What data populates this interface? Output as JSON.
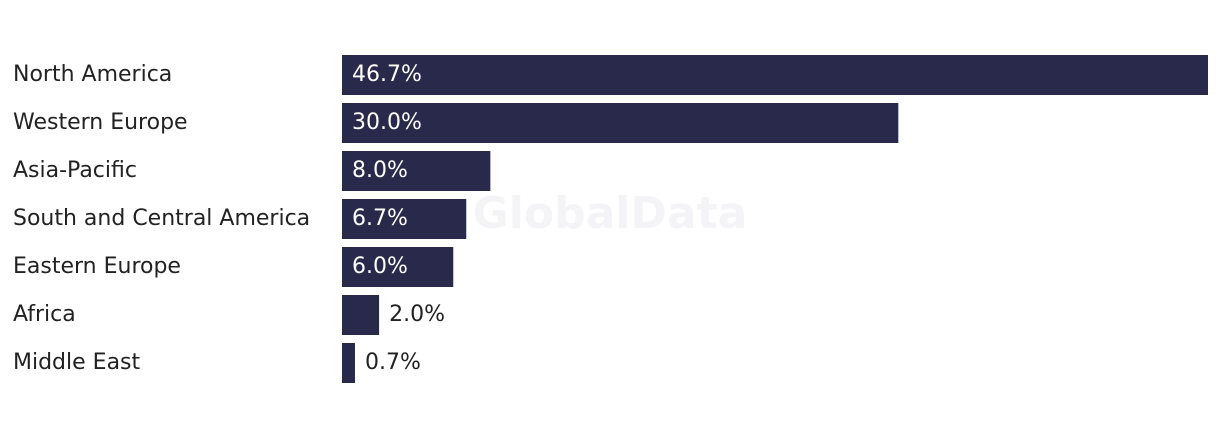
{
  "chart_data": {
    "type": "bar",
    "orientation": "horizontal",
    "watermark": "GlobalData",
    "categories": [
      "North America",
      "Western Europe",
      "Asia-Pacific",
      "South and Central America",
      "Eastern Europe",
      "Africa",
      "Middle East"
    ],
    "values": [
      46.7,
      30.0,
      8.0,
      6.7,
      6.0,
      2.0,
      0.7
    ],
    "value_labels": [
      "46.7%",
      "30.0%",
      "8.0%",
      "6.7%",
      "6.0%",
      "2.0%",
      "0.7%"
    ],
    "color": "#29294b"
  }
}
